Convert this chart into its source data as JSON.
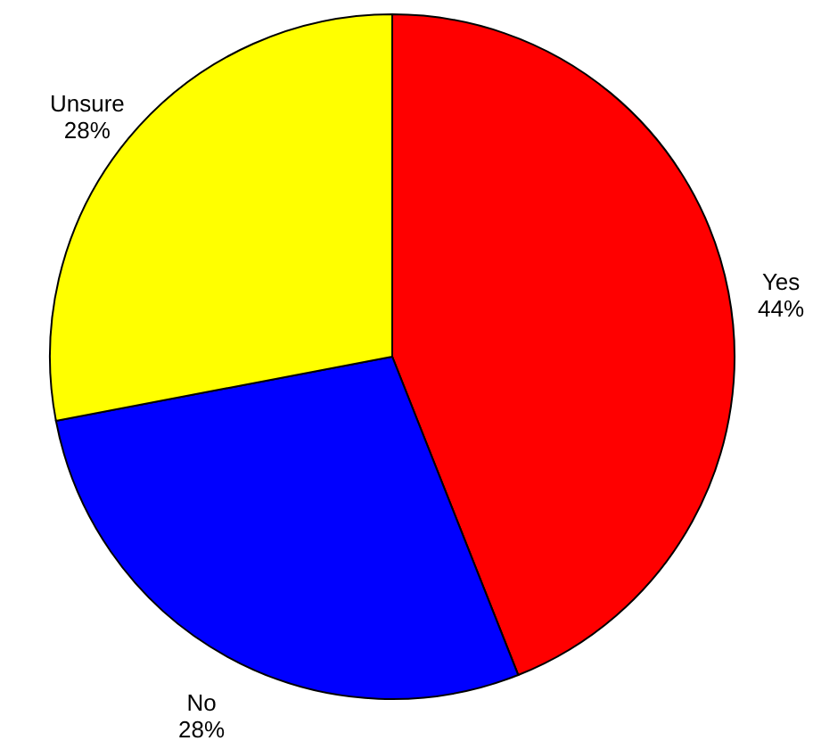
{
  "chart_data": {
    "type": "pie",
    "categories": [
      "Yes",
      "No",
      "Unsure"
    ],
    "values": [
      44,
      28,
      28
    ],
    "colors": [
      "#ff0000",
      "#0000ff",
      "#ffff00"
    ],
    "value_labels": [
      "44%",
      "28%",
      "28%"
    ]
  }
}
